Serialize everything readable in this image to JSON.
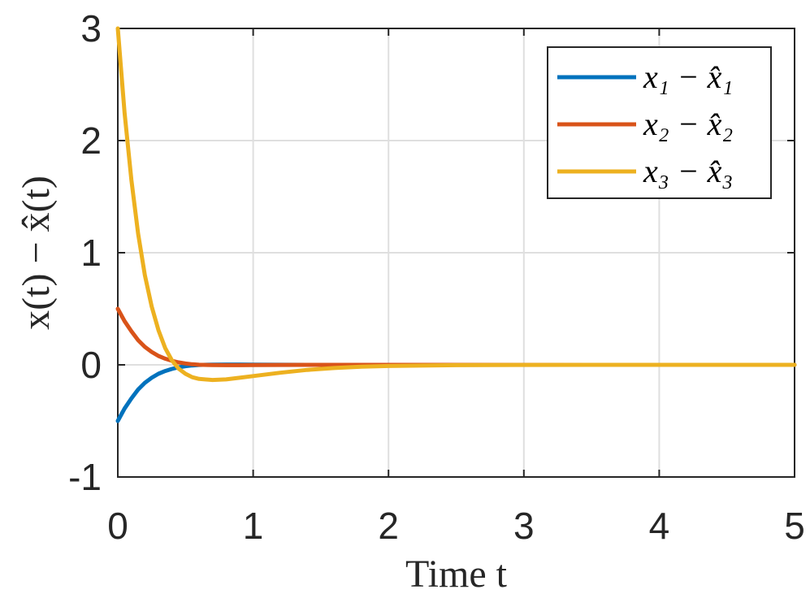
{
  "chart_data": {
    "type": "line",
    "xlabel": "Time t",
    "ylabel": "x(t) − x̂(t)",
    "xlim": [
      0,
      5
    ],
    "ylim": [
      -1,
      3
    ],
    "xticks": [
      0,
      1,
      2,
      3,
      4,
      5
    ],
    "yticks": [
      -1,
      0,
      1,
      2,
      3
    ],
    "xtick_labels": [
      "0",
      "1",
      "2",
      "3",
      "4",
      "5"
    ],
    "ytick_labels": [
      "-1",
      "0",
      "1",
      "2",
      "3"
    ],
    "grid": true,
    "legend_position": "top-right",
    "x": [
      0,
      0.05,
      0.1,
      0.15,
      0.2,
      0.25,
      0.3,
      0.35,
      0.4,
      0.45,
      0.5,
      0.55,
      0.6,
      0.7,
      0.8,
      0.9,
      1.0,
      1.2,
      1.4,
      1.6,
      1.8,
      2.0,
      2.5,
      3.0,
      3.5,
      4.0,
      4.5,
      5.0
    ],
    "series": [
      {
        "name": "x₁ − x̂₁",
        "color": "#0072BD",
        "values": [
          -0.5,
          -0.39,
          -0.3,
          -0.22,
          -0.16,
          -0.115,
          -0.08,
          -0.055,
          -0.036,
          -0.022,
          -0.012,
          -0.005,
          -0.001,
          0.002,
          0.003,
          0.003,
          0.002,
          0.001,
          0.0,
          0.0,
          0.0,
          0.0,
          0.0,
          0.0,
          0.0,
          0.0,
          0.0,
          0.0
        ]
      },
      {
        "name": "x₂ − x̂₂",
        "color": "#D95319",
        "values": [
          0.5,
          0.39,
          0.3,
          0.22,
          0.16,
          0.115,
          0.08,
          0.055,
          0.036,
          0.022,
          0.012,
          0.005,
          0.001,
          -0.002,
          -0.003,
          -0.003,
          -0.002,
          -0.001,
          0.0,
          0.0,
          0.0,
          0.0,
          0.0,
          0.0,
          0.0,
          0.0,
          0.0,
          0.0
        ]
      },
      {
        "name": "x₃ − x̂₃",
        "color": "#EDB120",
        "values": [
          3.0,
          2.25,
          1.65,
          1.17,
          0.8,
          0.52,
          0.31,
          0.15,
          0.04,
          -0.035,
          -0.08,
          -0.11,
          -0.125,
          -0.135,
          -0.13,
          -0.115,
          -0.1,
          -0.07,
          -0.045,
          -0.028,
          -0.017,
          -0.01,
          -0.003,
          -0.001,
          0.0,
          0.0,
          0.0,
          0.0
        ]
      }
    ]
  }
}
